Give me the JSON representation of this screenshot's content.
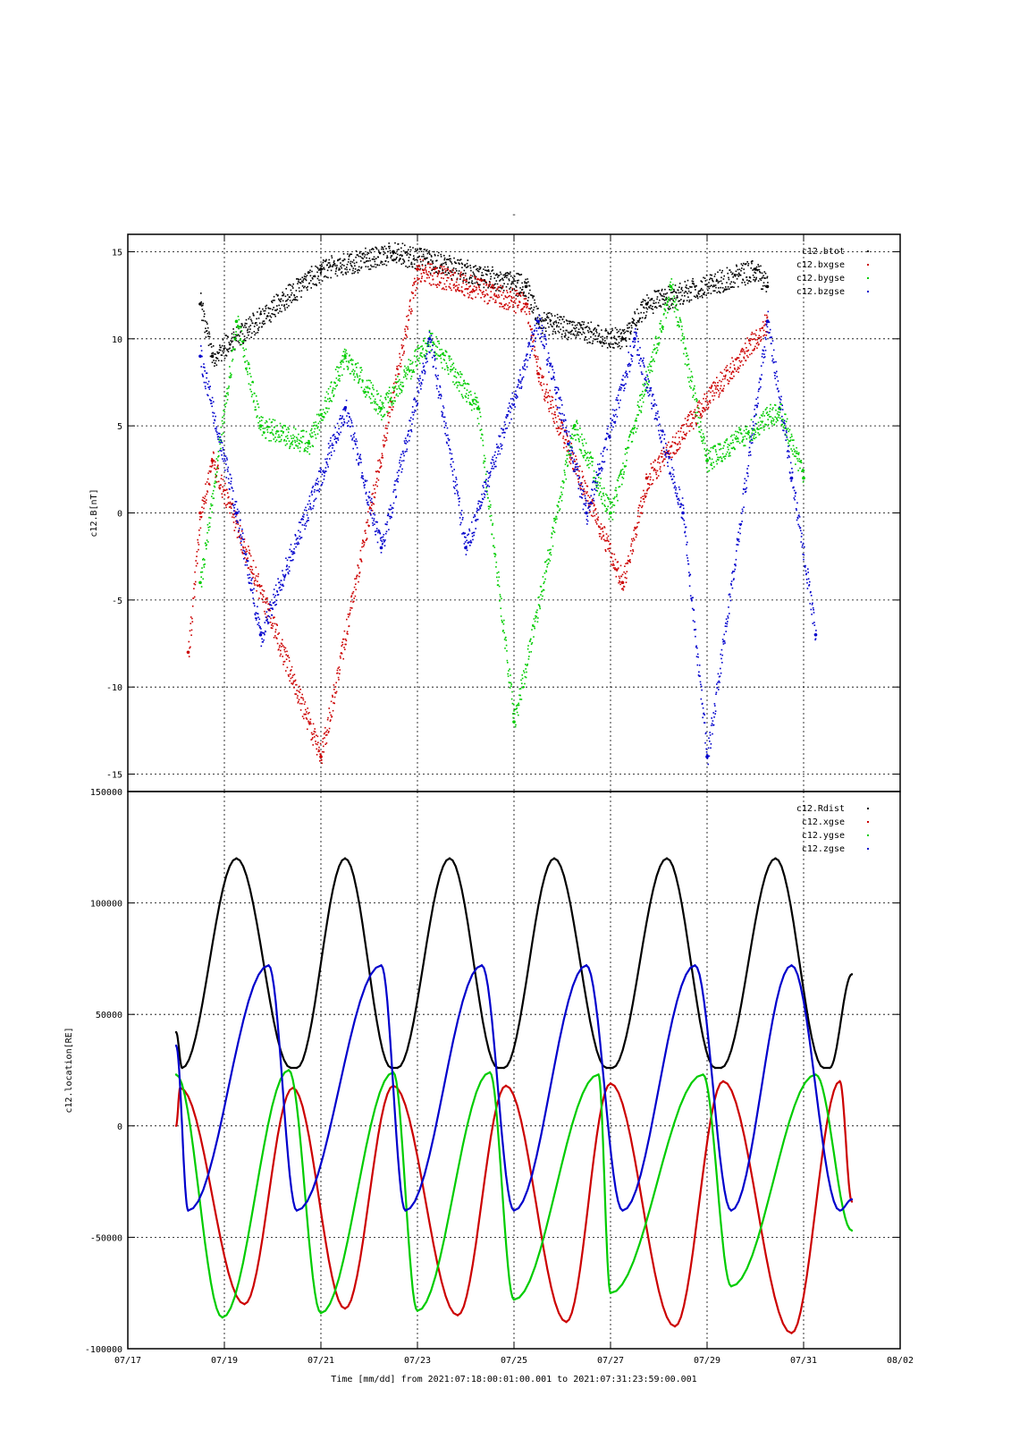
{
  "title": "-",
  "xlabel": "Time [mm/dd]  from 2021:07:18:00:01:00.001  to  2021:07:31:23:59:00.001",
  "x_ticks": [
    "07/17",
    "07/19",
    "07/21",
    "07/23",
    "07/25",
    "07/27",
    "07/29",
    "07/31",
    "08/02"
  ],
  "chart_data": [
    {
      "type": "scatter",
      "title": "",
      "ylabel": "c12.B[nT]",
      "xlim": [
        "2021-07-17",
        "2021-08-02"
      ],
      "ylim": [
        -16,
        16
      ],
      "y_ticks": [
        15,
        10,
        5,
        0,
        -5,
        -10,
        -15
      ],
      "grid": true,
      "legend_position": "top-right",
      "series": [
        {
          "name": "c12.btot",
          "color": "#000000",
          "x": [
            "2021-07-18 12:00",
            "2021-07-18 18:00",
            "2021-07-21 00:00",
            "2021-07-22 12:00",
            "2021-07-25 06:00",
            "2021-07-25 12:00",
            "2021-07-27 06:00",
            "2021-07-27 18:00",
            "2021-07-30 00:00",
            "2021-07-30 06:00"
          ],
          "y": [
            12,
            9,
            14,
            15,
            13,
            11,
            10,
            12,
            14,
            13
          ]
        },
        {
          "name": "c12.bxgse",
          "color": "#cc0000",
          "x": [
            "2021-07-18 06:00",
            "2021-07-18 12:00",
            "2021-07-18 18:00",
            "2021-07-21 00:00",
            "2021-07-23 00:00",
            "2021-07-25 06:00",
            "2021-07-25 12:00",
            "2021-07-27 06:00",
            "2021-07-27 18:00",
            "2021-07-30 06:00"
          ],
          "y": [
            -8,
            0,
            3,
            -14,
            14,
            12,
            8,
            -4,
            2,
            11
          ]
        },
        {
          "name": "c12.bygse",
          "color": "#00cc00",
          "x": [
            "2021-07-18 12:00",
            "2021-07-19 06:00",
            "2021-07-19 18:00",
            "2021-07-20 18:00",
            "2021-07-21 12:00",
            "2021-07-22 06:00",
            "2021-07-23 06:00",
            "2021-07-24 06:00",
            "2021-07-25 00:00",
            "2021-07-26 06:00",
            "2021-07-27 00:00",
            "2021-07-28 06:00",
            "2021-07-29 00:00",
            "2021-07-30 12:00",
            "2021-07-31 00:00"
          ],
          "y": [
            -4,
            11,
            5,
            4,
            9,
            6,
            10,
            6,
            -12,
            5,
            0,
            13,
            3,
            6,
            2
          ]
        },
        {
          "name": "c12.bzgse",
          "color": "#0000cc",
          "x": [
            "2021-07-18 12:00",
            "2021-07-19 06:00",
            "2021-07-19 18:00",
            "2021-07-21 12:00",
            "2021-07-22 06:00",
            "2021-07-23 06:00",
            "2021-07-24 00:00",
            "2021-07-25 12:00",
            "2021-07-26 12:00",
            "2021-07-27 12:00",
            "2021-07-28 12:00",
            "2021-07-29 00:00",
            "2021-07-30 06:00",
            "2021-07-30 18:00",
            "2021-07-31 06:00"
          ],
          "y": [
            9,
            0,
            -7,
            6,
            -2,
            10,
            -2,
            11,
            0,
            10,
            0,
            -14,
            11,
            2,
            -7
          ]
        }
      ]
    },
    {
      "type": "line",
      "title": "",
      "ylabel": "c12.location[RE]",
      "xlim": [
        "2021-07-17",
        "2021-08-02"
      ],
      "ylim": [
        -100000,
        150000
      ],
      "y_ticks": [
        "150000",
        "100000",
        "50000",
        "0",
        "-50000",
        "-100000"
      ],
      "grid": true,
      "legend_position": "top-right",
      "series": [
        {
          "name": "c12.Rdist",
          "color": "#000000",
          "x": [
            "2021-07-18 00:00",
            "2021-07-18 03:00",
            "2021-07-19 06:00",
            "2021-07-20 09:00",
            "2021-07-20 12:00",
            "2021-07-21 12:00",
            "2021-07-22 11:00",
            "2021-07-22 14:00",
            "2021-07-23 16:00",
            "2021-07-24 16:00",
            "2021-07-24 19:00",
            "2021-07-25 20:00",
            "2021-07-26 22:00",
            "2021-07-27 01:00",
            "2021-07-28 04:00",
            "2021-07-29 04:00",
            "2021-07-29 07:00",
            "2021-07-30 10:00",
            "2021-07-31 10:00",
            "2021-07-31 13:00",
            "2021-08-01 00:00"
          ],
          "y": [
            42000,
            26000,
            120000,
            26000,
            26000,
            120000,
            26000,
            26000,
            120000,
            26000,
            26000,
            120000,
            26000,
            26000,
            120000,
            26000,
            26000,
            120000,
            26000,
            26000,
            68000
          ]
        },
        {
          "name": "c12.xgse",
          "color": "#cc0000",
          "x": [
            "2021-07-18 00:00",
            "2021-07-18 02:00",
            "2021-07-19 10:00",
            "2021-07-20 10:00",
            "2021-07-21 12:00",
            "2021-07-22 12:00",
            "2021-07-23 20:00",
            "2021-07-24 20:00",
            "2021-07-26 02:00",
            "2021-07-27 00:00",
            "2021-07-28 08:00",
            "2021-07-29 08:00",
            "2021-07-30 18:00",
            "2021-07-31 18:00",
            "2021-08-01 00:00"
          ],
          "y": [
            0,
            17000,
            -80000,
            17000,
            -82000,
            18000,
            -85000,
            18000,
            -88000,
            19000,
            -90000,
            20000,
            -93000,
            20000,
            -34000
          ]
        },
        {
          "name": "c12.ygse",
          "color": "#00cc00",
          "x": [
            "2021-07-18 00:00",
            "2021-07-18 23:00",
            "2021-07-20 08:00",
            "2021-07-21 00:00",
            "2021-07-22 12:00",
            "2021-07-23 00:00",
            "2021-07-24 12:00",
            "2021-07-25 00:00",
            "2021-07-26 18:00",
            "2021-07-27 00:00",
            "2021-07-28 22:00",
            "2021-07-29 12:00",
            "2021-07-31 06:00",
            "2021-08-01 00:00"
          ],
          "y": [
            23000,
            -86000,
            25000,
            -84000,
            24000,
            -83000,
            24000,
            -78000,
            23000,
            -75000,
            23000,
            -72000,
            23000,
            -47000
          ]
        },
        {
          "name": "c12.zgse",
          "color": "#0000cc",
          "x": [
            "2021-07-18 00:00",
            "2021-07-18 06:00",
            "2021-07-19 22:00",
            "2021-07-20 12:00",
            "2021-07-22 06:00",
            "2021-07-22 18:00",
            "2021-07-24 08:00",
            "2021-07-25 00:00",
            "2021-07-26 12:00",
            "2021-07-27 06:00",
            "2021-07-28 18:00",
            "2021-07-29 12:00",
            "2021-07-30 18:00",
            "2021-07-31 18:00",
            "2021-08-01 00:00"
          ],
          "y": [
            36000,
            -38000,
            72000,
            -38000,
            72000,
            -38000,
            72000,
            -38000,
            72000,
            -38000,
            72000,
            -38000,
            72000,
            -38000,
            -33000
          ]
        }
      ]
    }
  ]
}
